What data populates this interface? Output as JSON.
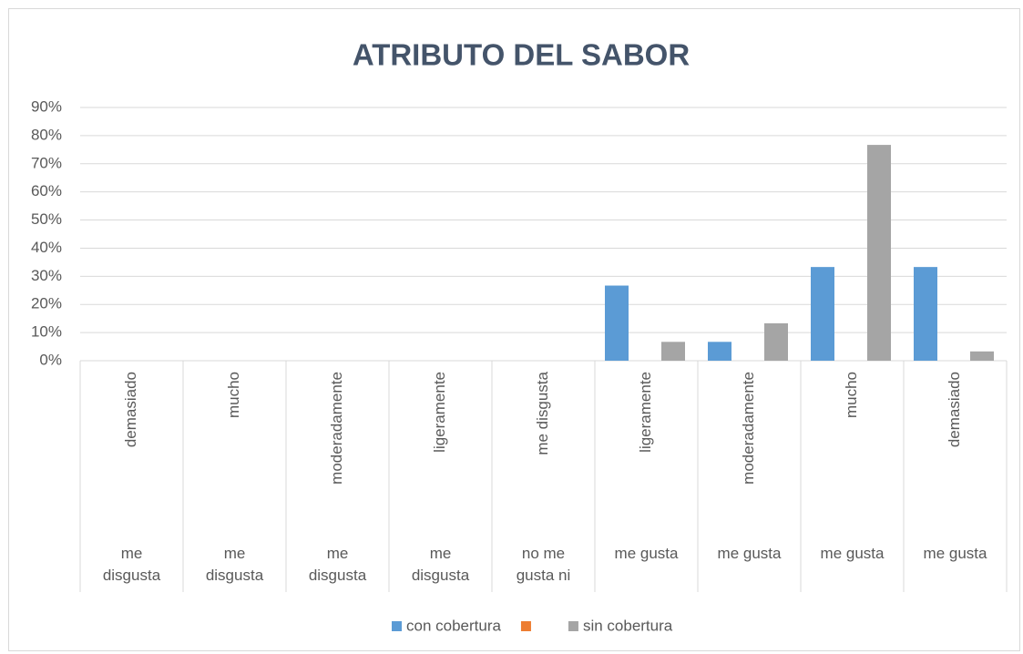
{
  "chart_data": {
    "type": "bar",
    "title": "ATRIBUTO DEL SABOR",
    "categories": [
      "demasiado",
      "mucho",
      "moderadamente",
      "ligeramente",
      "me disgusta",
      "ligeramente",
      "moderadamente",
      "mucho",
      "demasiado"
    ],
    "groups": [
      "me disgusta",
      "me disgusta",
      "me disgusta",
      "me disgusta",
      "no me gusta ni",
      "me gusta",
      "me gusta",
      "me gusta",
      "me gusta"
    ],
    "series": [
      {
        "name": "con cobertura",
        "color": "#5b9bd5",
        "values": [
          0,
          0,
          0,
          0,
          0,
          26.7,
          6.7,
          33.3,
          33.3
        ]
      },
      {
        "color": "#ed7d31",
        "values": [
          0,
          0,
          0,
          0,
          0,
          0,
          0,
          0,
          0
        ]
      },
      {
        "name": "sin cobertura",
        "color": "#a5a5a5",
        "values": [
          0,
          0,
          0,
          0,
          0,
          6.7,
          13.3,
          76.7,
          3.3
        ]
      }
    ],
    "ylim": [
      0,
      90
    ],
    "yticks": [
      {
        "value": 0,
        "label": "0%"
      },
      {
        "value": 10,
        "label": "10%"
      },
      {
        "value": 20,
        "label": "20%"
      },
      {
        "value": 30,
        "label": "30%"
      },
      {
        "value": 40,
        "label": "40%"
      },
      {
        "value": 50,
        "label": "50%"
      },
      {
        "value": 60,
        "label": "60%"
      },
      {
        "value": 70,
        "label": "70%"
      },
      {
        "value": 80,
        "label": "80%"
      },
      {
        "value": 90,
        "label": "90%"
      }
    ],
    "grid": true
  }
}
